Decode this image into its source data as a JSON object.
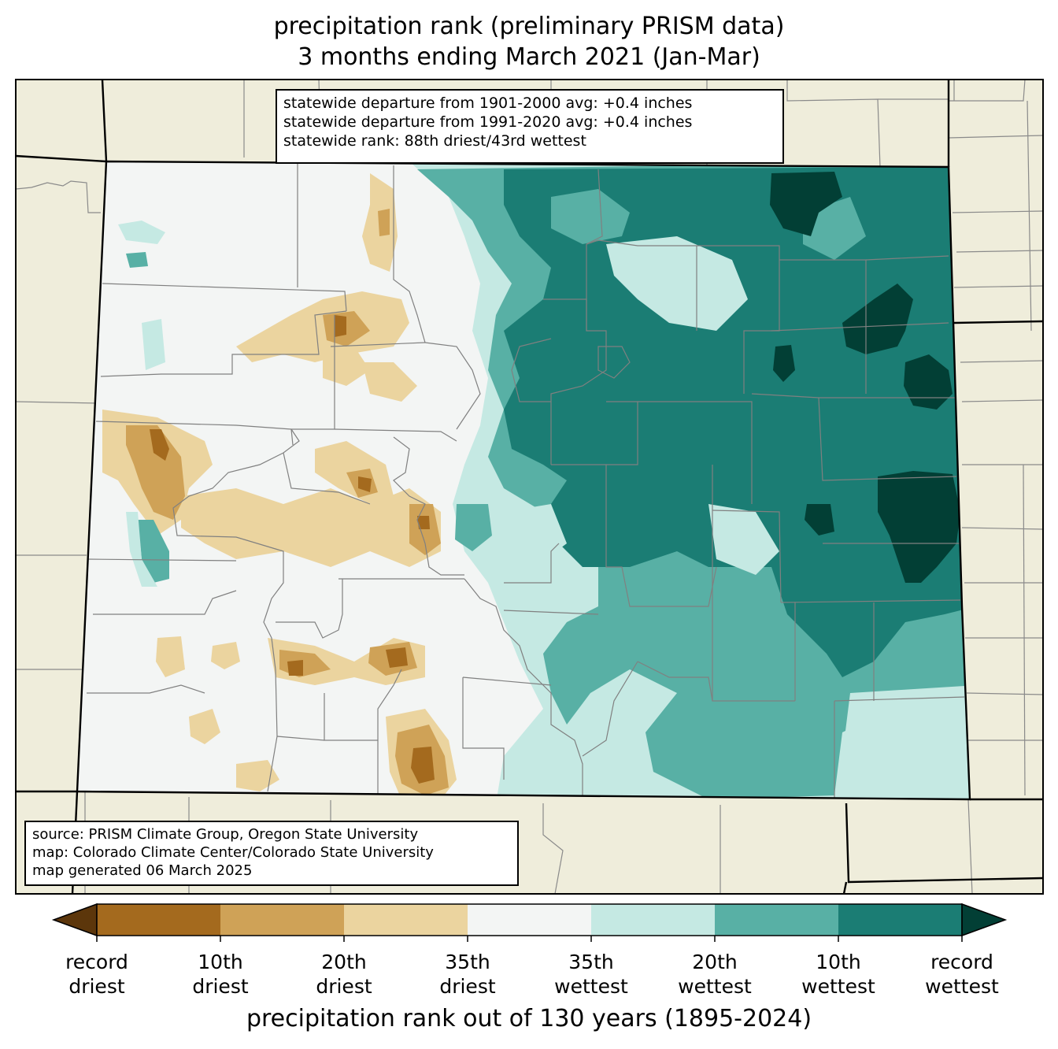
{
  "title": {
    "line1": "precipitation rank (preliminary PRISM data)",
    "line2": "3 months ending March 2021 (Jan-Mar)"
  },
  "stats": {
    "line1": "statewide departure from 1901-2000 avg: +0.4 inches",
    "line2": "statewide departure from 1991-2020 avg: +0.4 inches",
    "line3": "statewide rank: 88th driest/43rd wettest"
  },
  "source": {
    "line1": "source: PRISM Climate Group, Oregon State University",
    "line2": "map: Colorado Climate Center/Colorado State University",
    "line3": "map generated 06 March 2025"
  },
  "colorbar": {
    "label": "precipitation rank out of 130 years (1895-2024)",
    "ticks": [
      {
        "l1": "record",
        "l2": "driest"
      },
      {
        "l1": "10th",
        "l2": "driest"
      },
      {
        "l1": "20th",
        "l2": "driest"
      },
      {
        "l1": "35th",
        "l2": "driest"
      },
      {
        "l1": "35th",
        "l2": "wettest"
      },
      {
        "l1": "20th",
        "l2": "wettest"
      },
      {
        "l1": "10th",
        "l2": "wettest"
      },
      {
        "l1": "record",
        "l2": "wettest"
      }
    ],
    "colors": [
      "#5c360b",
      "#a46a1e",
      "#cfa257",
      "#ebd49f",
      "#f3f5f4",
      "#c5e9e3",
      "#58b0a5",
      "#1b7d74",
      "#023f35"
    ]
  },
  "map_colors": {
    "background": "#efeddb",
    "record_dry": "#a46a1e",
    "dry10": "#cfa257",
    "dry20": "#ebd49f",
    "normal": "#f3f5f4",
    "wet20": "#c5e9e3",
    "wet10": "#58b0a5",
    "wet_top": "#1b7d74",
    "record_wet": "#023f35"
  }
}
